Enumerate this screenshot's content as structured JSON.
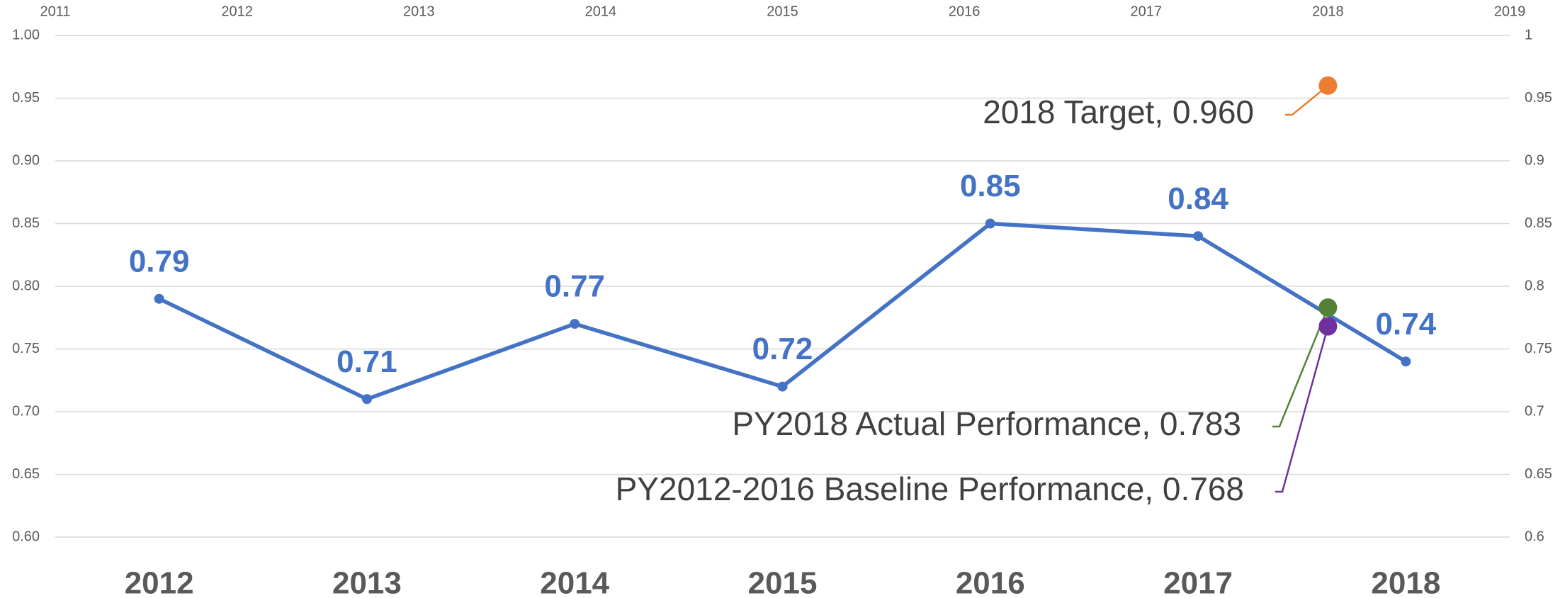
{
  "chart_data": {
    "type": "line",
    "categories": [
      "2012",
      "2013",
      "2014",
      "2015",
      "2016",
      "2017",
      "2018"
    ],
    "series": [
      {
        "color": "#4472c4",
        "values": [
          0.79,
          0.71,
          0.77,
          0.72,
          0.85,
          0.84,
          0.74
        ]
      }
    ],
    "ylim": [
      0.6,
      1.0
    ],
    "yticks": [
      {
        "value": 0.6,
        "label": "0.60"
      },
      {
        "value": 0.65,
        "label": "0.65"
      },
      {
        "value": 0.7,
        "label": "0.70"
      },
      {
        "value": 0.75,
        "label": "0.75"
      },
      {
        "value": 0.8,
        "label": "0.80"
      },
      {
        "value": 0.85,
        "label": "0.85"
      },
      {
        "value": 0.9,
        "label": "0.90"
      },
      {
        "value": 0.95,
        "label": "0.95"
      },
      {
        "value": 1.0,
        "label": "1.00"
      }
    ],
    "y2lim": [
      0.6,
      1
    ],
    "y2ticks": [
      0.6,
      0.65,
      0.7,
      0.75,
      0.8,
      0.85,
      0.9,
      0.95,
      1
    ],
    "xlim": [
      2011,
      2019
    ],
    "xticks": [
      2011,
      2012,
      2013,
      2014,
      2015,
      2016,
      2017,
      2018,
      2019
    ],
    "grid": true,
    "scatter": [
      {
        "label": "2018 Target, 0.960",
        "color": "#ed7d31",
        "x": 2018,
        "y": 0.96,
        "axis": "y2"
      },
      {
        "label": "PY2018 Actual Performance, 0.783",
        "color": "#548235",
        "x": 2018,
        "y": 0.783,
        "axis": "y2"
      },
      {
        "label": "PY2012-2016 Baseline Performance, 0.768",
        "color": "#7030a0",
        "x": 2018,
        "y": 0.768,
        "axis": "y2"
      }
    ]
  }
}
